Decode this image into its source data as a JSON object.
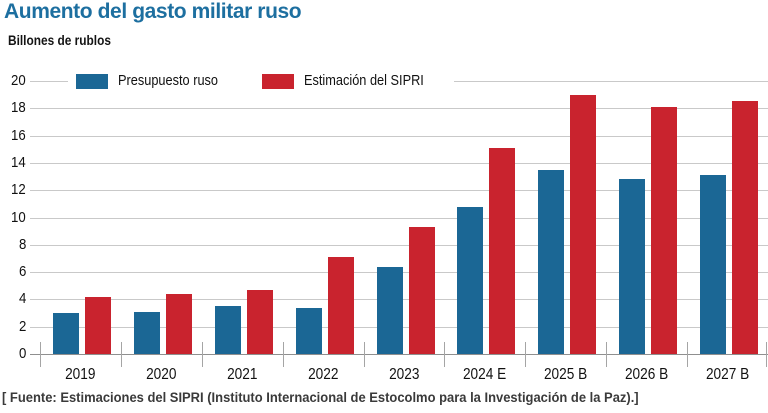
{
  "header": {
    "title": "Aumento del gasto militar ruso",
    "units_label": "Billones de rublos"
  },
  "legend": [
    {
      "label": "Presupuesto ruso",
      "color": "#1b6795"
    },
    {
      "label": "Estimación del SIPRI",
      "color": "#c9232e"
    }
  ],
  "footer": {
    "source": "[ Fuente: Estimaciones del SIPRI (Instituto Internacional de Estocolmo para la Investigación de la Paz).]"
  },
  "colors": {
    "title": "#1d6fa0",
    "bar_blue": "#1b6795",
    "bar_red": "#c9232e",
    "gridline": "#c9c9c9",
    "axis": "#8f8f8f",
    "tick": "#a5a5a5",
    "text": "#111111"
  },
  "chart_data": {
    "type": "bar",
    "title": "Aumento del gasto militar ruso",
    "ylabel": "Billones de rublos",
    "categories": [
      "2019",
      "2020",
      "2021",
      "2022",
      "2023",
      "2024 E",
      "2025 B",
      "2026 B",
      "2027 B"
    ],
    "series": [
      {
        "name": "Presupuesto ruso",
        "color": "#1b6795",
        "values": [
          3.0,
          3.1,
          3.5,
          3.4,
          6.4,
          10.8,
          13.5,
          12.8,
          13.1
        ]
      },
      {
        "name": "Estimación del SIPRI",
        "color": "#c9232e",
        "values": [
          4.2,
          4.4,
          4.7,
          7.1,
          9.3,
          15.1,
          19.0,
          18.1,
          18.5
        ]
      }
    ],
    "ylim": [
      0,
      20
    ],
    "ytick_step": 2,
    "yticks": [
      0,
      2,
      4,
      6,
      8,
      10,
      12,
      14,
      16,
      18,
      20
    ],
    "grid": true,
    "legend_position": "top"
  }
}
